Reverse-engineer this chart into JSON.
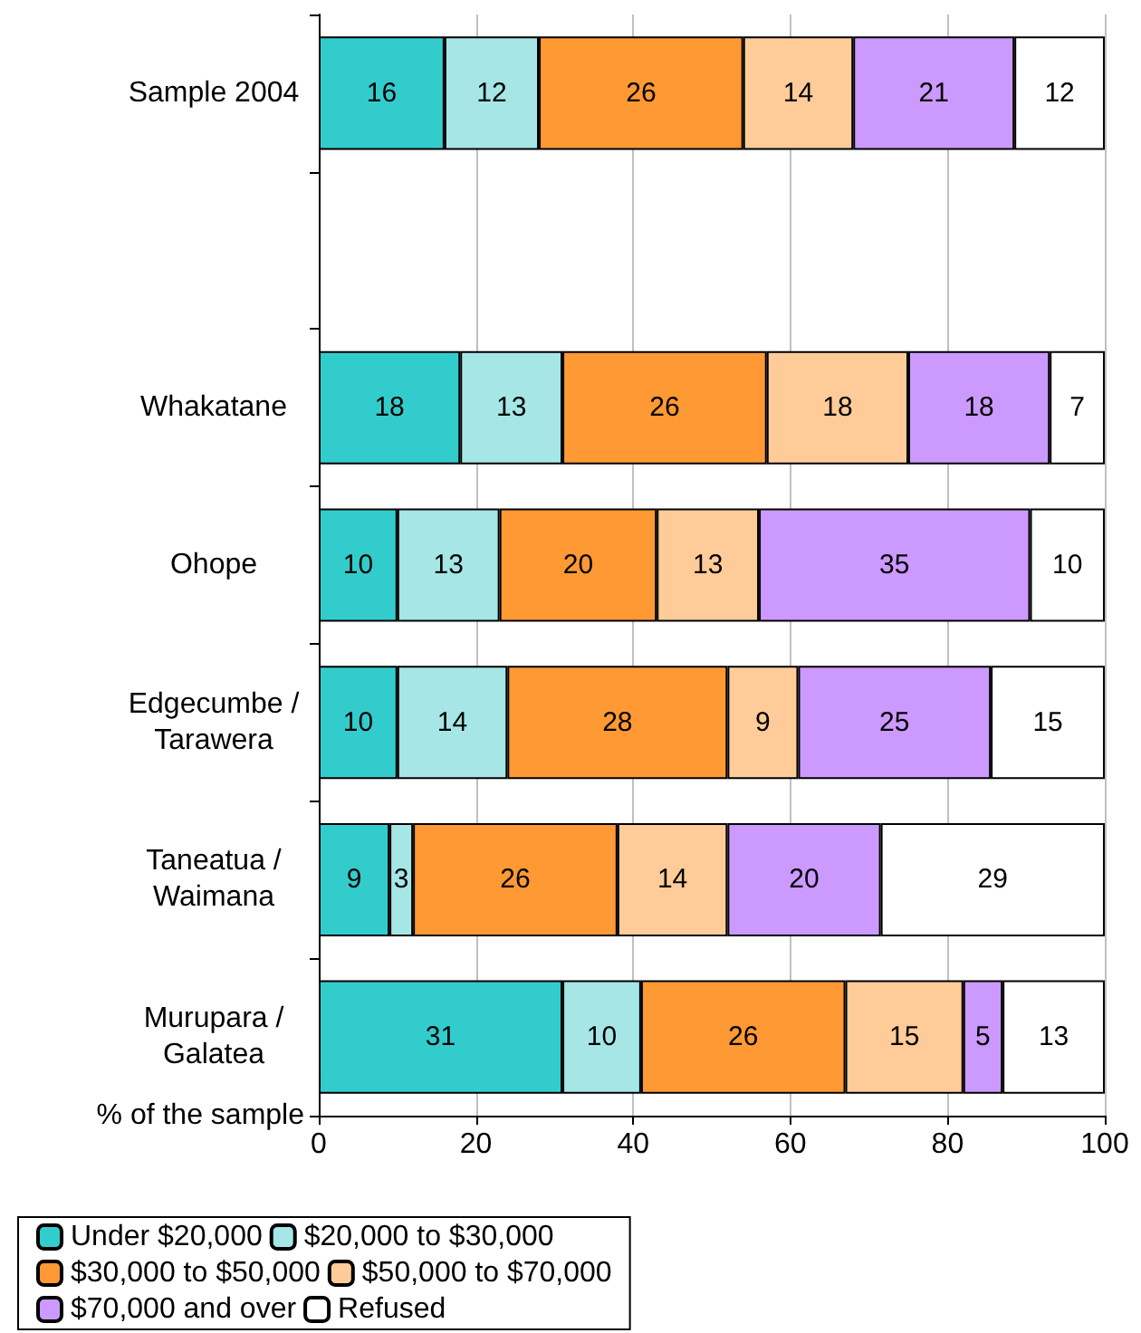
{
  "chart_data": {
    "type": "bar",
    "orientation": "horizontal",
    "stacked": true,
    "xlabel": "% of the sample",
    "categories": [
      "Sample 2004",
      null,
      "Whakatane",
      "Ohope",
      "Edgecumbe /\nTarawera",
      "Taneatua /\nWaimana",
      "Murupara /\nGalatea"
    ],
    "series": [
      {
        "name": "Under $20,000",
        "color": "#33cccc",
        "values": [
          16,
          null,
          18,
          10,
          10,
          9,
          31
        ]
      },
      {
        "name": "$20,000 to $30,000",
        "color": "#a6e6e6",
        "values": [
          12,
          null,
          13,
          13,
          14,
          3,
          10
        ]
      },
      {
        "name": "$30,000 to $50,000",
        "color": "#ff9933",
        "values": [
          26,
          null,
          26,
          20,
          28,
          26,
          26
        ]
      },
      {
        "name": "$50,000 to $70,000",
        "color": "#ffcc99",
        "values": [
          14,
          null,
          18,
          13,
          9,
          14,
          15
        ]
      },
      {
        "name": "$70,000 and over",
        "color": "#cc99ff",
        "values": [
          20.5,
          null,
          18,
          34.5,
          24.5,
          19.5,
          5
        ],
        "value_labels": [
          "21",
          null,
          "18",
          "35",
          "25",
          "20",
          "5"
        ]
      },
      {
        "name": "Refused",
        "color": "#ffffff",
        "values": [
          11.5,
          null,
          7,
          9.5,
          14.5,
          28.5,
          13
        ],
        "value_labels": [
          "12",
          null,
          "7",
          "10",
          "15",
          "29",
          "13"
        ]
      }
    ],
    "xlim": [
      0,
      100
    ],
    "xticks": [
      0,
      20,
      40,
      60,
      80,
      100
    ],
    "grid": "x",
    "legend": "bottom",
    "data_labels": true
  }
}
